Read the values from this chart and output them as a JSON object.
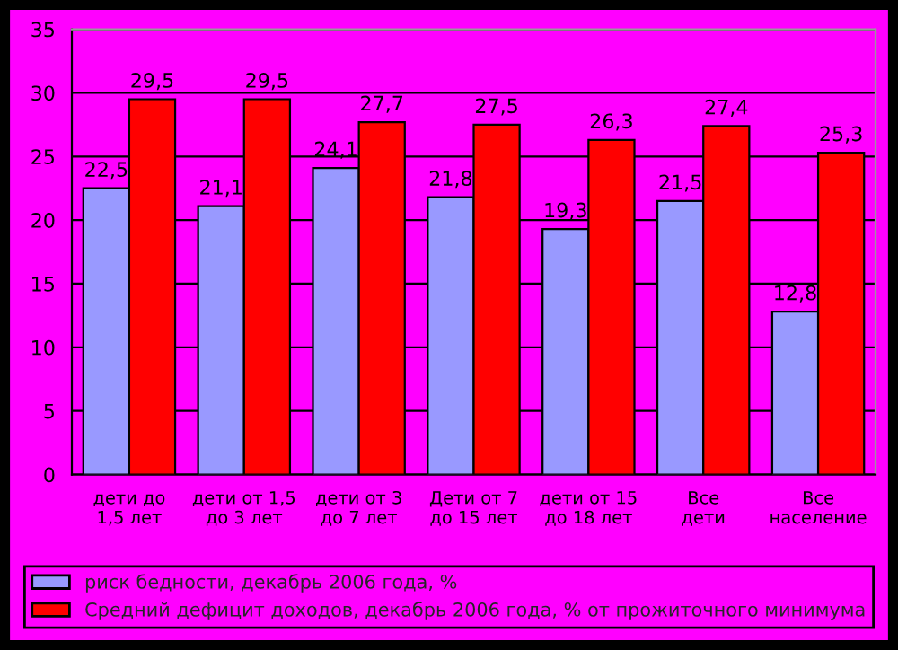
{
  "chart_data": {
    "type": "bar",
    "categories": [
      "дети до 1,5 лет",
      "дети от 1,5 до 3 лет",
      "дети от 3 до 7 лет",
      "Дети от 7 до 15 лет",
      "дети от 15 до 18 лет",
      "Все дети",
      "Все население"
    ],
    "series": [
      {
        "name": "риск бедности, декабрь 2006 года, %",
        "color": "#9999ff",
        "values": [
          22.5,
          21.1,
          24.1,
          21.8,
          19.3,
          21.5,
          12.8
        ],
        "value_labels": [
          "22,5",
          "21,1",
          "24,1",
          "21,8",
          "19,3",
          "21,5",
          "12,8"
        ]
      },
      {
        "name": "Средний дефицит доходов, декабрь 2006 года, % от прожиточного минимума",
        "color": "#ff0000",
        "values": [
          29.5,
          29.5,
          27.7,
          27.5,
          26.3,
          27.4,
          25.3
        ],
        "value_labels": [
          "29,5",
          "29,5",
          "27,7",
          "27,5",
          "26,3",
          "27,4",
          "25,3"
        ]
      }
    ],
    "ylim": [
      0,
      35
    ],
    "yticks": [
      0,
      5,
      10,
      15,
      20,
      25,
      30,
      35
    ],
    "grid": "y",
    "legend": "bottom"
  }
}
